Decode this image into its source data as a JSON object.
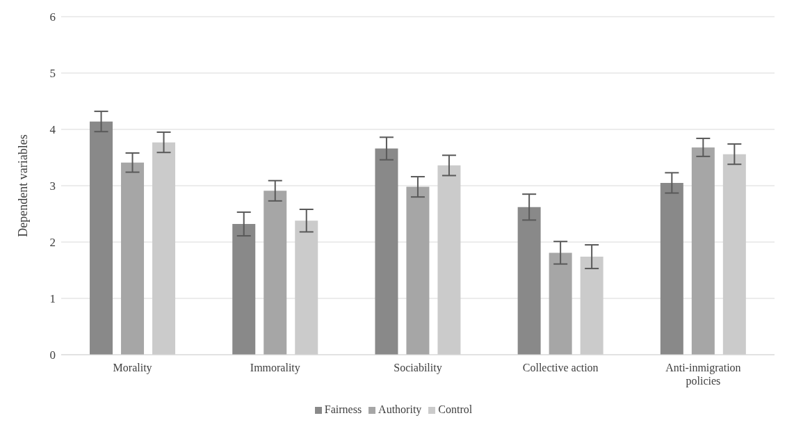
{
  "chart_data": {
    "type": "bar",
    "ylabel": "Dependent variables",
    "categories": [
      "Morality",
      "Immorality",
      "Sociability",
      "Collective action",
      "Anti-inmigration policies"
    ],
    "series": [
      {
        "name": "Fairness",
        "color": "#898989",
        "values": [
          4.14,
          2.32,
          3.66,
          2.62,
          3.05
        ],
        "errors": [
          0.18,
          0.21,
          0.2,
          0.23,
          0.18
        ]
      },
      {
        "name": "Authority",
        "color": "#a6a6a6",
        "values": [
          3.41,
          2.91,
          2.98,
          1.81,
          3.68
        ],
        "errors": [
          0.17,
          0.18,
          0.18,
          0.2,
          0.16
        ]
      },
      {
        "name": "Control",
        "color": "#cbcbcb",
        "values": [
          3.77,
          2.38,
          3.36,
          1.74,
          3.56
        ],
        "errors": [
          0.18,
          0.2,
          0.18,
          0.21,
          0.18
        ]
      }
    ],
    "ylim": [
      0,
      6
    ],
    "yticks": [
      0,
      1,
      2,
      3,
      4,
      5,
      6
    ],
    "grid": "y",
    "legend": "bottom"
  }
}
